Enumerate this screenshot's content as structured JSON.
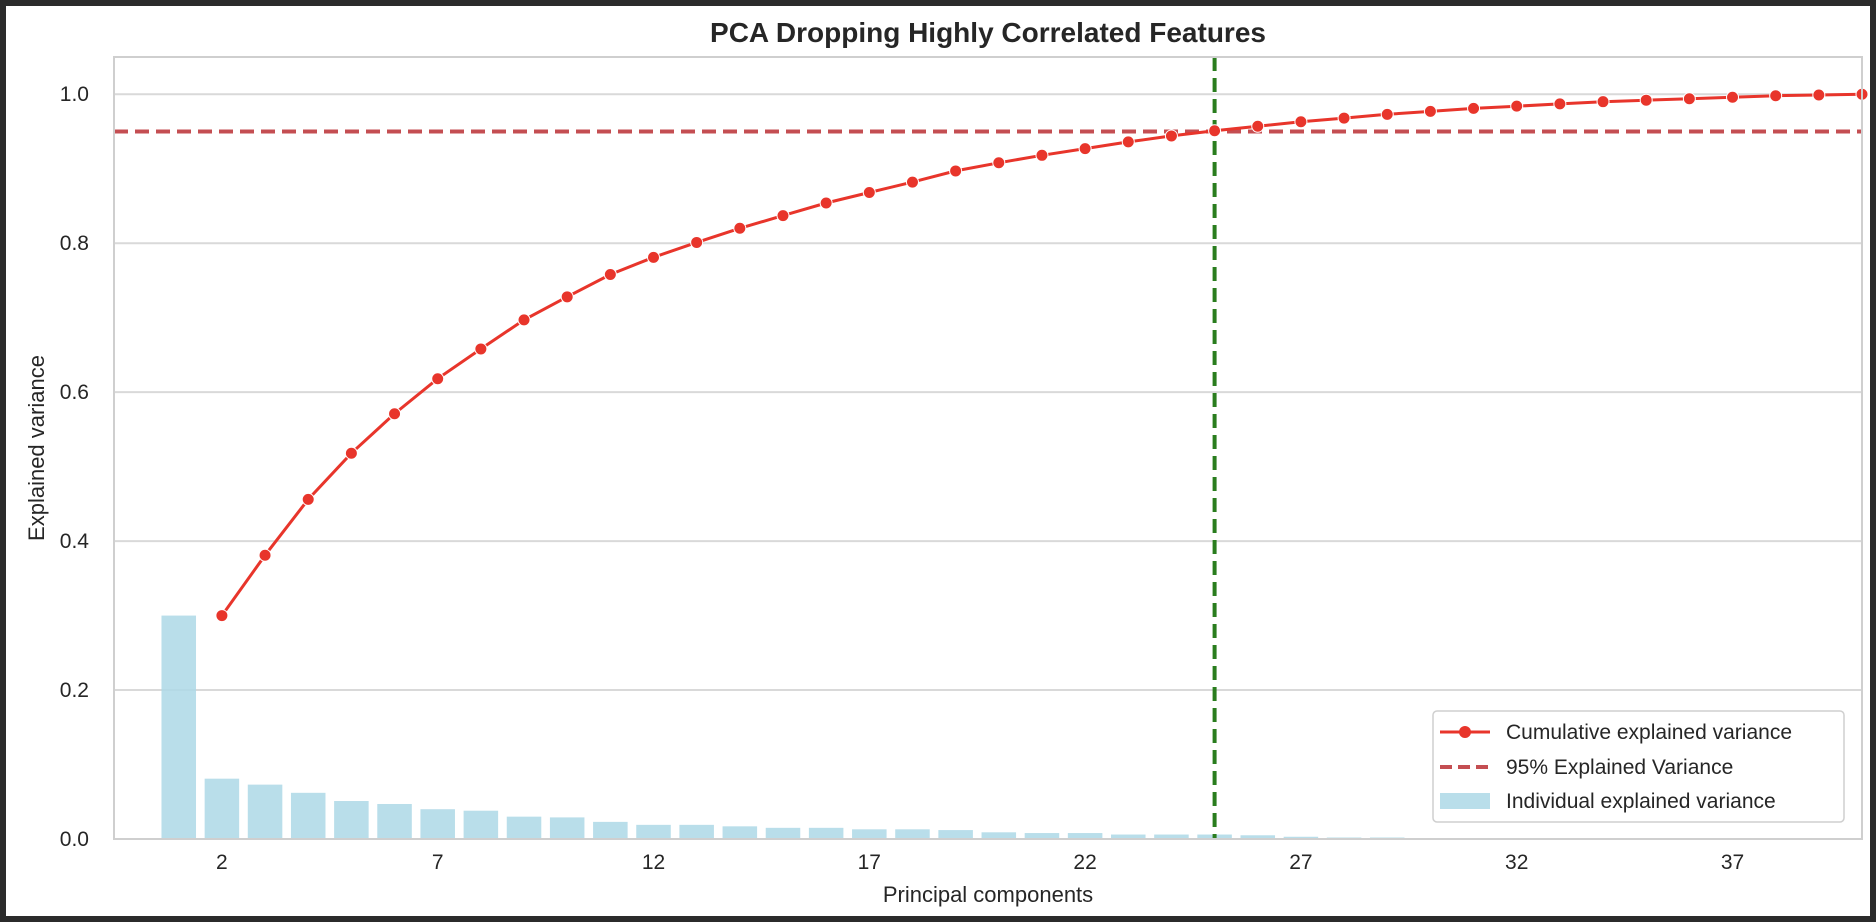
{
  "chart_data": {
    "type": "bar",
    "title": "PCA Dropping Highly Correlated Features",
    "xlabel": "Principal components",
    "ylabel": "Explained variance",
    "xlim": [
      -0.5,
      40
    ],
    "ylim": [
      0,
      1.05
    ],
    "xticks": [
      2,
      7,
      12,
      17,
      22,
      27,
      32,
      37
    ],
    "yticks": [
      "0.0",
      "0.2",
      "0.4",
      "0.6",
      "0.8",
      "1.0"
    ],
    "grid": "horizontal",
    "legend_position": "lower-right",
    "colors": {
      "bars": "#add8e6",
      "cumulative": "#e8352b",
      "threshold": "#c44e52",
      "vline": "#2a7d1e",
      "grid": "#d9d9d9"
    },
    "series": [
      {
        "name": "Individual explained variance",
        "type": "bar",
        "x": [
          1,
          2,
          3,
          4,
          5,
          6,
          7,
          8,
          9,
          10,
          11,
          12,
          13,
          14,
          15,
          16,
          17,
          18,
          19,
          20,
          21,
          22,
          23,
          24,
          25,
          26,
          27,
          28,
          29,
          30,
          31,
          32,
          33,
          34,
          35,
          36,
          37,
          38,
          39
        ],
        "values": [
          0.3,
          0.081,
          0.073,
          0.062,
          0.051,
          0.047,
          0.04,
          0.038,
          0.03,
          0.029,
          0.023,
          0.019,
          0.019,
          0.017,
          0.015,
          0.015,
          0.013,
          0.013,
          0.012,
          0.009,
          0.008,
          0.008,
          0.006,
          0.006,
          0.006,
          0.005,
          0.003,
          0.002,
          0.002,
          0.001,
          0.001,
          0.001,
          0.001,
          0.001,
          0.001,
          0.001,
          0.001,
          0.001,
          0.001
        ]
      },
      {
        "name": "Cumulative explained variance",
        "type": "line",
        "x": [
          2,
          3,
          4,
          5,
          6,
          7,
          8,
          9,
          10,
          11,
          12,
          13,
          14,
          15,
          16,
          17,
          18,
          19,
          20,
          21,
          22,
          23,
          24,
          25,
          26,
          27,
          28,
          29,
          30,
          31,
          32,
          33,
          34,
          35,
          36,
          37,
          38,
          39,
          40
        ],
        "values": [
          0.3,
          0.381,
          0.456,
          0.518,
          0.571,
          0.618,
          0.658,
          0.697,
          0.728,
          0.758,
          0.781,
          0.801,
          0.82,
          0.837,
          0.854,
          0.868,
          0.882,
          0.897,
          0.908,
          0.918,
          0.927,
          0.936,
          0.944,
          0.951,
          0.957,
          0.963,
          0.968,
          0.973,
          0.977,
          0.981,
          0.984,
          0.987,
          0.99,
          0.992,
          0.994,
          0.996,
          0.998,
          0.999,
          1.0
        ]
      },
      {
        "name": "95% Explained Variance",
        "type": "hline",
        "y": 0.95
      }
    ],
    "vline_x": 25
  }
}
